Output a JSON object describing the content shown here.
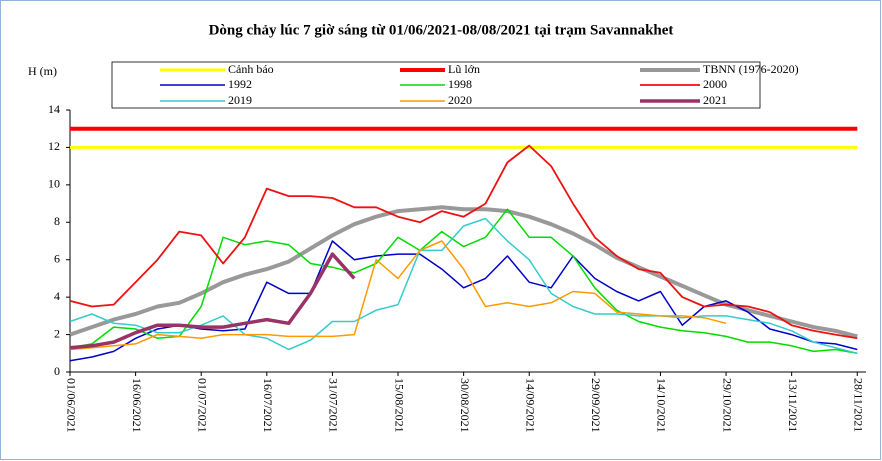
{
  "chart_data": {
    "type": "line",
    "title": "Dòng chảy lúc 7 giờ sáng từ 01/06/2021-08/08/2021 tại trạm Savannakhet",
    "y_label": "H (m)",
    "x": [
      "01/06/2021",
      "06/06/2021",
      "11/06/2021",
      "16/06/2021",
      "21/06/2021",
      "26/06/2021",
      "01/07/2021",
      "06/07/2021",
      "11/07/2021",
      "16/07/2021",
      "21/07/2021",
      "26/07/2021",
      "31/07/2021",
      "05/08/2021",
      "10/08/2021",
      "15/08/2021",
      "20/08/2021",
      "25/08/2021",
      "30/08/2021",
      "04/09/2021",
      "09/09/2021",
      "14/09/2021",
      "19/09/2021",
      "24/09/2021",
      "29/09/2021",
      "04/10/2021",
      "09/10/2021",
      "14/10/2021",
      "19/10/2021",
      "24/10/2021",
      "29/10/2021",
      "03/11/2021",
      "08/11/2021",
      "13/11/2021",
      "18/11/2021",
      "23/11/2021",
      "28/11/2021"
    ],
    "xlim": [
      "01/06/2021",
      "30/11/2021"
    ],
    "xticks": [
      "01/06/2021",
      "16/06/2021",
      "01/07/2021",
      "16/07/2021",
      "31/07/2021",
      "15/08/2021",
      "30/08/2021",
      "14/09/2021",
      "29/09/2021",
      "14/10/2021",
      "29/10/2021",
      "13/11/2021",
      "28/11/2021"
    ],
    "ylim": [
      0,
      14
    ],
    "yticks": [
      0,
      2,
      4,
      6,
      8,
      10,
      12,
      14
    ],
    "series": [
      {
        "name": "Cảnh báo",
        "color": "#ffff00",
        "values": [
          12,
          12,
          12,
          12,
          12,
          12,
          12,
          12,
          12,
          12,
          12,
          12,
          12,
          12,
          12,
          12,
          12,
          12,
          12,
          12,
          12,
          12,
          12,
          12,
          12,
          12,
          12,
          12,
          12,
          12,
          12,
          12,
          12,
          12,
          12,
          12,
          12
        ]
      },
      {
        "name": "Lũ lớn",
        "color": "#ff0000",
        "values": [
          13,
          13,
          13,
          13,
          13,
          13,
          13,
          13,
          13,
          13,
          13,
          13,
          13,
          13,
          13,
          13,
          13,
          13,
          13,
          13,
          13,
          13,
          13,
          13,
          13,
          13,
          13,
          13,
          13,
          13,
          13,
          13,
          13,
          13,
          13,
          13,
          13
        ]
      },
      {
        "name": "TBNN (1976-2020)",
        "color": "#999999",
        "values": [
          2.0,
          2.4,
          2.8,
          3.1,
          3.5,
          3.7,
          4.2,
          4.8,
          5.2,
          5.5,
          5.9,
          6.6,
          7.3,
          7.9,
          8.3,
          8.6,
          8.7,
          8.8,
          8.7,
          8.7,
          8.6,
          8.3,
          7.9,
          7.4,
          6.8,
          6.1,
          5.6,
          5.1,
          4.6,
          4.1,
          3.6,
          3.3,
          3.0,
          2.7,
          2.4,
          2.2,
          1.9
        ]
      },
      {
        "name": "1992",
        "color": "#0000cc",
        "values": [
          0.6,
          0.8,
          1.1,
          1.8,
          2.3,
          2.5,
          2.3,
          2.2,
          2.3,
          4.8,
          4.2,
          4.2,
          7.0,
          6.0,
          6.2,
          6.3,
          6.3,
          5.5,
          4.5,
          5.0,
          6.2,
          4.8,
          4.5,
          6.2,
          5.0,
          4.3,
          3.8,
          4.3,
          2.5,
          3.5,
          3.8,
          3.2,
          2.3,
          2.0,
          1.6,
          1.5,
          1.2
        ]
      },
      {
        "name": "1998",
        "color": "#00dd00",
        "values": [
          1.3,
          1.5,
          2.4,
          2.3,
          1.8,
          1.9,
          3.5,
          7.2,
          6.8,
          7.0,
          6.8,
          5.8,
          5.6,
          5.3,
          5.8,
          7.2,
          6.5,
          7.5,
          6.7,
          7.2,
          8.7,
          7.2,
          7.2,
          6.2,
          4.5,
          3.3,
          2.7,
          2.4,
          2.2,
          2.1,
          1.9,
          1.6,
          1.6,
          1.4,
          1.1,
          1.2,
          1.0
        ]
      },
      {
        "name": "2000",
        "color": "#ee1111",
        "values": [
          3.8,
          3.5,
          3.6,
          4.8,
          6.0,
          7.5,
          7.3,
          5.8,
          7.2,
          9.8,
          9.4,
          9.4,
          9.3,
          8.8,
          8.8,
          8.3,
          8.0,
          8.6,
          8.3,
          9.0,
          11.2,
          12.1,
          11.0,
          9.0,
          7.2,
          6.2,
          5.5,
          5.3,
          4.0,
          3.5,
          3.6,
          3.5,
          3.2,
          2.5,
          2.2,
          2.0,
          1.8
        ]
      },
      {
        "name": "2019",
        "color": "#33cccc",
        "values": [
          2.7,
          3.1,
          2.6,
          2.5,
          2.1,
          2.1,
          2.5,
          3.0,
          2.0,
          1.8,
          1.2,
          1.7,
          2.7,
          2.7,
          3.3,
          3.6,
          6.5,
          6.5,
          7.8,
          8.2,
          7.0,
          6.0,
          4.2,
          3.5,
          3.1,
          3.1,
          3.0,
          3.0,
          2.9,
          3.0,
          3.0,
          2.8,
          2.6,
          2.2,
          1.6,
          1.3,
          1.0
        ]
      },
      {
        "name": "2020",
        "color": "#ff9900",
        "values": [
          1.2,
          1.3,
          1.4,
          1.5,
          2.0,
          1.9,
          1.8,
          2.0,
          2.0,
          2.0,
          1.9,
          1.9,
          1.9,
          2.0,
          6.0,
          5.0,
          6.5,
          7.0,
          5.5,
          3.5,
          3.7,
          3.5,
          3.7,
          4.3,
          4.2,
          3.2,
          3.1,
          3.0,
          3.0,
          2.9,
          2.6,
          null,
          null,
          null,
          null,
          null,
          null
        ]
      },
      {
        "name": "2021",
        "color": "#993366",
        "values": [
          1.3,
          1.4,
          1.6,
          2.1,
          2.5,
          2.5,
          2.4,
          2.4,
          2.6,
          2.8,
          2.6,
          4.2,
          6.3,
          5.0,
          null,
          null,
          null,
          null,
          null,
          null,
          null,
          null,
          null,
          null,
          null,
          null,
          null,
          null,
          null,
          null,
          null,
          null,
          null,
          null,
          null,
          null,
          null
        ]
      }
    ]
  }
}
